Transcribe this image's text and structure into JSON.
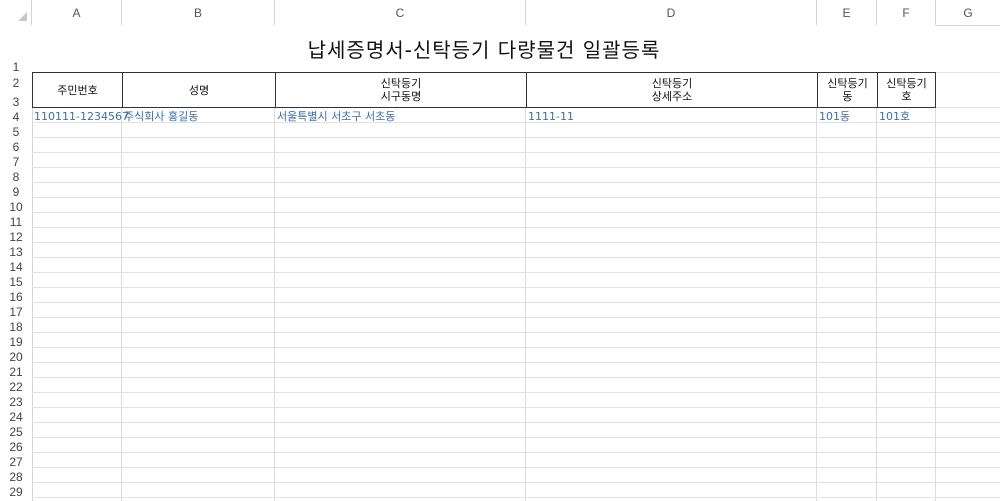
{
  "columns": [
    "A",
    "B",
    "C",
    "D",
    "E",
    "F",
    "G"
  ],
  "rows": [
    "1",
    "2",
    "3",
    "4",
    "5",
    "6",
    "7",
    "8",
    "9",
    "10",
    "11",
    "12",
    "13",
    "14",
    "15",
    "16",
    "17",
    "18",
    "19",
    "20",
    "21",
    "22",
    "23",
    "24",
    "25",
    "26",
    "27",
    "28",
    "29"
  ],
  "sheet": {
    "title": "납세증명서-신탁등기 다량물건 일괄등록",
    "headers": {
      "a": "주민번호",
      "b": "성명",
      "c": "신탁등기\n시구동명",
      "d": "신탁등기\n상세주소",
      "e": "신탁등기\n동",
      "f": "신탁등기\n호"
    },
    "row4": {
      "a": "110111-1234567",
      "b": "주식회사 홍길동",
      "c": "서울특별시 서초구 서초동",
      "d": "1111-11",
      "e": "101동",
      "f": "101호"
    }
  },
  "colors": {
    "data_text": "#3b6fa8",
    "grid": "#dcdcdc",
    "border": "#333333"
  },
  "icons": {
    "corner": "select-all-triangle-icon"
  }
}
